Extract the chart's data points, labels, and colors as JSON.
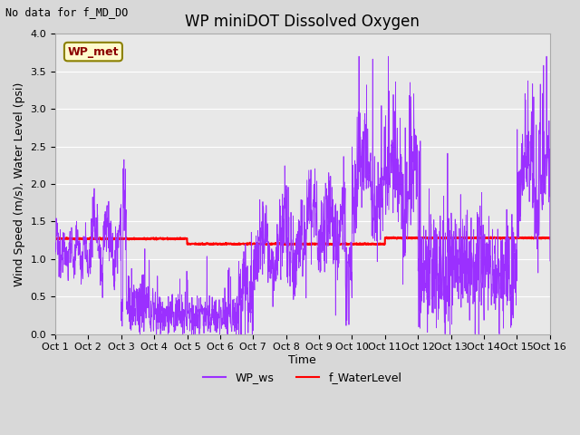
{
  "title": "WP miniDOT Dissolved Oxygen",
  "top_left_text": "No data for f_MD_DO",
  "ylabel": "Wind Speed (m/s), Water Level (psi)",
  "xlabel": "Time",
  "ylim": [
    0.0,
    4.0
  ],
  "yticks": [
    0.0,
    0.5,
    1.0,
    1.5,
    2.0,
    2.5,
    3.0,
    3.5,
    4.0
  ],
  "legend_labels": [
    "WP_ws",
    "f_WaterLevel"
  ],
  "legend_colors": [
    "#9B30FF",
    "#FF0000"
  ],
  "wp_met_box_text": "WP_met",
  "wp_met_box_facecolor": "#FFFACD",
  "wp_met_box_edgecolor": "#8B8000",
  "wp_met_text_color": "#8B0000",
  "fig_facecolor": "#D8D8D8",
  "axes_facecolor": "#E8E8E8",
  "line_purple": "#9B30FF",
  "line_red": "#FF0000",
  "grid_color": "#FFFFFF",
  "title_fontsize": 12,
  "axis_label_fontsize": 9,
  "tick_label_fontsize": 8,
  "xtick_labels": [
    "Oct 1",
    "Oct 2",
    "Oct 3",
    "Oct 4",
    "Oct 5",
    "Oct 6",
    "Oct 7",
    "Oct 8",
    "Oct 9",
    "Oct 10",
    "Oct 11",
    "Oct 12",
    "Oct 13",
    "Oct 14",
    "Oct 15",
    "Oct 16"
  ],
  "num_days": 16,
  "random_seed": 12345
}
